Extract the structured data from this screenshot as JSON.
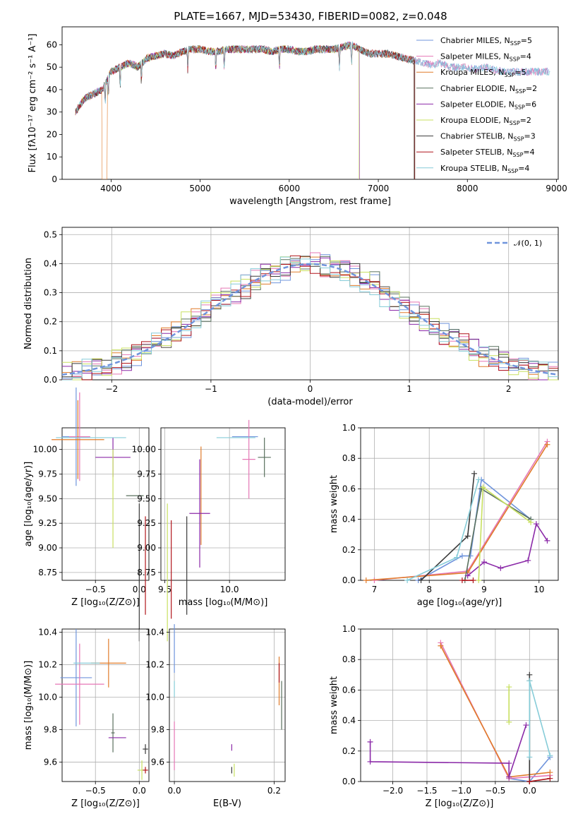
{
  "figure": {
    "title": "PLATE=1667, MJD=53430, FIBERID=0082, z=0.048"
  },
  "legend_entries": [
    {
      "label": "Chabrier MILES, N",
      "n": "5",
      "color": "#6f94dc"
    },
    {
      "label": "Salpeter MILES, N",
      "n": "4",
      "color": "#e577b5"
    },
    {
      "label": "Kroupa MILES, N",
      "n": "5",
      "color": "#e07b2a"
    },
    {
      "label": "Chabrier ELODIE, N",
      "n": "2",
      "color": "#59705e"
    },
    {
      "label": "Salpeter ELODIE, N",
      "n": "6",
      "color": "#8b2aa8"
    },
    {
      "label": "Kroupa ELODIE, N",
      "n": "2",
      "color": "#c8e060"
    },
    {
      "label": "Chabrier STELIB, N",
      "n": "3",
      "color": "#3a3a3a"
    },
    {
      "label": "Salpeter STELIB, N",
      "n": "4",
      "color": "#b0151b"
    },
    {
      "label": "Kroupa STELIB, N",
      "n": "4",
      "color": "#86ccd8"
    }
  ],
  "legend_sub": "SSP",
  "chart_data": [
    {
      "type": "line",
      "name": "spectrum",
      "xlabel": "wavelength [Angstrom, rest frame]",
      "ylabel": "Flux [fλ10⁻¹⁷ erg cm⁻² s⁻¹ A⁻¹]",
      "xlim": [
        3450,
        9020
      ],
      "ylim": [
        0,
        68
      ],
      "xticks": [
        "4000",
        "5000",
        "6000",
        "7000",
        "8000",
        "9000"
      ],
      "yticks": [
        "0",
        "10",
        "20",
        "30",
        "40",
        "50",
        "60"
      ],
      "x": [
        3600,
        3700,
        3800,
        3900,
        4000,
        4100,
        4200,
        4300,
        4400,
        4500,
        4600,
        4700,
        4800,
        4900,
        5000,
        5100,
        5200,
        5300,
        5400,
        5500,
        5600,
        5700,
        5800,
        5900,
        6000,
        6100,
        6200,
        6300,
        6400,
        6500,
        6600,
        6700,
        6800,
        6900,
        7000,
        7100,
        7200,
        7300,
        7400,
        7500,
        7600,
        7700,
        7800,
        7900,
        8000,
        8100,
        8200,
        8300,
        8400,
        8500,
        8600,
        8700,
        8800,
        8900,
        9000
      ],
      "y": [
        30,
        36,
        38,
        40,
        48,
        50,
        52,
        50,
        54,
        55,
        56,
        55,
        57,
        58,
        58,
        57,
        57,
        58,
        58,
        58,
        58,
        58,
        57,
        58,
        58,
        57,
        57,
        58,
        58,
        58,
        59,
        60,
        58,
        56,
        56,
        56,
        55,
        54,
        53,
        52,
        51,
        52,
        50,
        50,
        50,
        49,
        50,
        49,
        48,
        48,
        48,
        48,
        48,
        48,
        48
      ]
    },
    {
      "type": "bar",
      "name": "residual-histogram",
      "xlabel": "(data-model)/error",
      "ylabel": "Normed distribution",
      "xlim": [
        -2.5,
        2.5
      ],
      "ylim": [
        0,
        0.525
      ],
      "xticks": [
        "−2",
        "−1",
        "0",
        "1",
        "2"
      ],
      "yticks": [
        "0.0",
        "0.1",
        "0.2",
        "0.3",
        "0.4",
        "0.5"
      ],
      "gaussian_label": "𝒩(0, 1)",
      "bin_width": 0.1,
      "bins_start": -2.5
    },
    {
      "type": "scatter",
      "name": "age-vs-metallicity",
      "xlabel": "Z [log₁₀(Z/Z⊙)]",
      "ylabel": "age  [log₁₀(age/yr)]",
      "xlim": [
        -0.88,
        0.11
      ],
      "ylim": [
        8.67,
        10.22
      ],
      "xticks": [
        "−0.5",
        "0.0"
      ],
      "yticks": [
        "8.75",
        "9.00",
        "9.25",
        "9.50",
        "9.75",
        "10.00"
      ]
    },
    {
      "type": "scatter",
      "name": "age-vs-mass",
      "xlabel": "mass [log₁₀(M/M⊙)]",
      "ylabel": "",
      "xlim": [
        9.47,
        10.43
      ],
      "ylim": [
        8.67,
        10.22
      ],
      "xticks": [
        "9.5",
        "10.0"
      ],
      "yticks": [
        "8.75",
        "9.00",
        "9.25",
        "9.50",
        "9.75",
        "10.00"
      ]
    },
    {
      "type": "line",
      "name": "mass-weight-vs-age",
      "xlabel": "age  [log₁₀(age/yr)]",
      "ylabel": "mass weight",
      "xlim": [
        6.75,
        10.35
      ],
      "ylim": [
        0,
        1.0
      ],
      "xticks": [
        "7",
        "8",
        "9",
        "10"
      ],
      "yticks": [
        "0.0",
        "0.2",
        "0.4",
        "0.6",
        "0.8",
        "1.0"
      ]
    },
    {
      "type": "scatter",
      "name": "mass-vs-metallicity",
      "xlabel": "Z [log₁₀(Z/Z⊙)]",
      "ylabel": "mass [log₁₀(M/M⊙)]",
      "xlim": [
        -0.88,
        0.11
      ],
      "ylim": [
        9.48,
        10.42
      ],
      "xticks": [
        "−0.5",
        "0.0"
      ],
      "yticks": [
        "9.6",
        "9.8",
        "10.0",
        "10.2",
        "10.4"
      ]
    },
    {
      "type": "scatter",
      "name": "mass-vs-ebv",
      "xlabel": "E(B-V)",
      "ylabel": "",
      "xlim": [
        -0.01,
        0.222
      ],
      "ylim": [
        9.48,
        10.42
      ],
      "xticks": [
        "0.0",
        "0.2"
      ],
      "yticks": [
        "9.6",
        "9.8",
        "10.0",
        "10.2",
        "10.4"
      ]
    },
    {
      "type": "line",
      "name": "mass-weight-vs-metallicity",
      "xlabel": "Z [log₁₀(Z/Z⊙)]",
      "ylabel": "mass weight",
      "xlim": [
        -2.47,
        0.42
      ],
      "ylim": [
        0,
        1.0
      ],
      "xticks": [
        "−2.0",
        "−1.5",
        "−1.0",
        "−0.5",
        "0.0"
      ],
      "yticks": [
        "0.0",
        "0.2",
        "0.4",
        "0.6",
        "0.8",
        "1.0"
      ]
    }
  ]
}
